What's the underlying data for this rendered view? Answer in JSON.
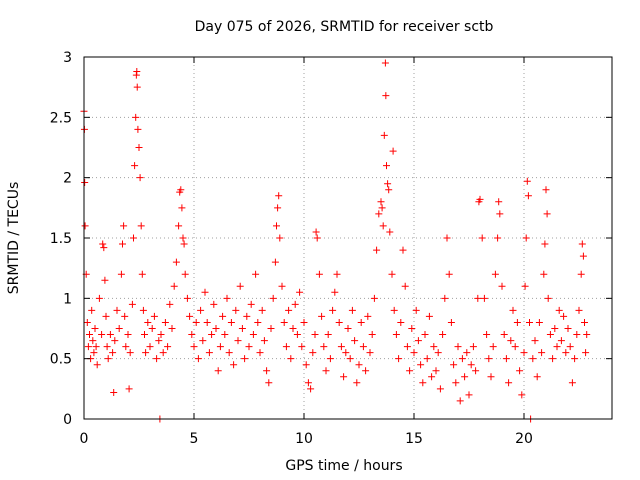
{
  "chart_data": {
    "type": "scatter",
    "title": "Day 075 of 2026, SRMTID for receiver sctb",
    "xlabel": "GPS time / hours",
    "ylabel": "SRMTID / TECUs",
    "xlim": [
      0,
      24
    ],
    "ylim": [
      0,
      3
    ],
    "grid": true,
    "x_ticks": [
      0,
      5,
      10,
      15,
      20
    ],
    "x_tick_labels": [
      "0",
      "5",
      "10",
      "15",
      "20"
    ],
    "y_ticks": [
      0,
      0.5,
      1,
      1.5,
      2,
      2.5,
      3
    ],
    "y_tick_labels": [
      "0",
      "0.5",
      "1",
      "1.5",
      "2",
      "2.5",
      "3"
    ],
    "marker": "+",
    "series": [
      {
        "name": "SRMTID",
        "color": "#ff0000",
        "points": [
          [
            0.0,
            2.55
          ],
          [
            0.02,
            2.4
          ],
          [
            0.03,
            1.96
          ],
          [
            0.05,
            1.6
          ],
          [
            0.1,
            1.2
          ],
          [
            0.15,
            0.8
          ],
          [
            0.2,
            0.6
          ],
          [
            0.25,
            0.7
          ],
          [
            0.3,
            0.5
          ],
          [
            0.35,
            0.9
          ],
          [
            0.4,
            0.65
          ],
          [
            0.45,
            0.55
          ],
          [
            0.5,
            0.75
          ],
          [
            0.55,
            0.6
          ],
          [
            0.6,
            0.45
          ],
          [
            0.7,
            1.0
          ],
          [
            0.8,
            0.7
          ],
          [
            0.85,
            1.45
          ],
          [
            0.9,
            1.42
          ],
          [
            0.95,
            1.15
          ],
          [
            1.0,
            0.85
          ],
          [
            1.05,
            0.6
          ],
          [
            1.1,
            0.5
          ],
          [
            1.2,
            0.7
          ],
          [
            1.3,
            0.55
          ],
          [
            1.35,
            0.22
          ],
          [
            1.4,
            0.65
          ],
          [
            1.5,
            0.9
          ],
          [
            1.6,
            0.75
          ],
          [
            1.7,
            1.2
          ],
          [
            1.75,
            1.45
          ],
          [
            1.8,
            1.6
          ],
          [
            1.85,
            0.85
          ],
          [
            1.9,
            0.6
          ],
          [
            2.0,
            0.7
          ],
          [
            2.05,
            0.25
          ],
          [
            2.1,
            0.55
          ],
          [
            2.2,
            0.95
          ],
          [
            2.25,
            1.5
          ],
          [
            2.3,
            2.1
          ],
          [
            2.35,
            2.5
          ],
          [
            2.38,
            2.85
          ],
          [
            2.4,
            2.88
          ],
          [
            2.42,
            2.75
          ],
          [
            2.45,
            2.4
          ],
          [
            2.5,
            2.25
          ],
          [
            2.55,
            2.0
          ],
          [
            2.6,
            1.6
          ],
          [
            2.65,
            1.2
          ],
          [
            2.7,
            0.9
          ],
          [
            2.75,
            0.7
          ],
          [
            2.8,
            0.55
          ],
          [
            2.9,
            0.8
          ],
          [
            3.0,
            0.6
          ],
          [
            3.1,
            0.75
          ],
          [
            3.2,
            0.85
          ],
          [
            3.3,
            0.5
          ],
          [
            3.4,
            0.65
          ],
          [
            3.45,
            0.0
          ],
          [
            3.5,
            0.7
          ],
          [
            3.6,
            0.55
          ],
          [
            3.7,
            0.8
          ],
          [
            3.8,
            0.6
          ],
          [
            3.9,
            0.95
          ],
          [
            4.0,
            0.75
          ],
          [
            4.1,
            1.1
          ],
          [
            4.2,
            1.3
          ],
          [
            4.3,
            1.6
          ],
          [
            4.35,
            1.88
          ],
          [
            4.4,
            1.9
          ],
          [
            4.45,
            1.75
          ],
          [
            4.5,
            1.5
          ],
          [
            4.55,
            1.45
          ],
          [
            4.6,
            1.2
          ],
          [
            4.7,
            1.0
          ],
          [
            4.8,
            0.85
          ],
          [
            4.9,
            0.7
          ],
          [
            5.0,
            0.6
          ],
          [
            5.1,
            0.8
          ],
          [
            5.2,
            0.5
          ],
          [
            5.3,
            0.9
          ],
          [
            5.4,
            0.65
          ],
          [
            5.5,
            1.05
          ],
          [
            5.6,
            0.8
          ],
          [
            5.7,
            0.55
          ],
          [
            5.8,
            0.7
          ],
          [
            5.9,
            0.95
          ],
          [
            6.0,
            0.75
          ],
          [
            6.1,
            0.4
          ],
          [
            6.2,
            0.6
          ],
          [
            6.3,
            0.85
          ],
          [
            6.4,
            0.7
          ],
          [
            6.5,
            1.0
          ],
          [
            6.6,
            0.55
          ],
          [
            6.7,
            0.8
          ],
          [
            6.8,
            0.45
          ],
          [
            6.9,
            0.9
          ],
          [
            7.0,
            0.65
          ],
          [
            7.1,
            1.1
          ],
          [
            7.2,
            0.75
          ],
          [
            7.3,
            0.5
          ],
          [
            7.4,
            0.85
          ],
          [
            7.5,
            0.6
          ],
          [
            7.6,
            0.95
          ],
          [
            7.7,
            0.7
          ],
          [
            7.8,
            1.2
          ],
          [
            7.9,
            0.8
          ],
          [
            8.0,
            0.55
          ],
          [
            8.1,
            0.9
          ],
          [
            8.2,
            0.65
          ],
          [
            8.3,
            0.4
          ],
          [
            8.4,
            0.3
          ],
          [
            8.5,
            0.75
          ],
          [
            8.6,
            1.0
          ],
          [
            8.7,
            1.3
          ],
          [
            8.75,
            1.6
          ],
          [
            8.8,
            1.75
          ],
          [
            8.85,
            1.85
          ],
          [
            8.9,
            1.5
          ],
          [
            9.0,
            1.1
          ],
          [
            9.1,
            0.8
          ],
          [
            9.2,
            0.6
          ],
          [
            9.3,
            0.9
          ],
          [
            9.4,
            0.5
          ],
          [
            9.5,
            0.75
          ],
          [
            9.6,
            0.95
          ],
          [
            9.7,
            0.7
          ],
          [
            9.8,
            1.05
          ],
          [
            9.9,
            0.6
          ],
          [
            10.0,
            0.8
          ],
          [
            10.1,
            0.45
          ],
          [
            10.2,
            0.3
          ],
          [
            10.3,
            0.25
          ],
          [
            10.4,
            0.55
          ],
          [
            10.5,
            0.7
          ],
          [
            10.55,
            1.55
          ],
          [
            10.6,
            1.5
          ],
          [
            10.7,
            1.2
          ],
          [
            10.8,
            0.85
          ],
          [
            10.9,
            0.6
          ],
          [
            11.0,
            0.4
          ],
          [
            11.1,
            0.7
          ],
          [
            11.2,
            0.5
          ],
          [
            11.3,
            0.9
          ],
          [
            11.4,
            1.05
          ],
          [
            11.5,
            1.2
          ],
          [
            11.6,
            0.8
          ],
          [
            11.7,
            0.6
          ],
          [
            11.8,
            0.35
          ],
          [
            11.9,
            0.55
          ],
          [
            12.0,
            0.75
          ],
          [
            12.1,
            0.5
          ],
          [
            12.2,
            0.9
          ],
          [
            12.3,
            0.65
          ],
          [
            12.4,
            0.3
          ],
          [
            12.5,
            0.45
          ],
          [
            12.6,
            0.8
          ],
          [
            12.7,
            0.6
          ],
          [
            12.8,
            0.4
          ],
          [
            12.9,
            0.85
          ],
          [
            13.0,
            0.55
          ],
          [
            13.1,
            0.7
          ],
          [
            13.2,
            1.0
          ],
          [
            13.3,
            1.4
          ],
          [
            13.4,
            1.7
          ],
          [
            13.5,
            1.8
          ],
          [
            13.55,
            1.75
          ],
          [
            13.6,
            1.6
          ],
          [
            13.65,
            2.35
          ],
          [
            13.7,
            2.95
          ],
          [
            13.72,
            2.68
          ],
          [
            13.75,
            2.1
          ],
          [
            13.8,
            1.95
          ],
          [
            13.85,
            1.9
          ],
          [
            13.9,
            1.55
          ],
          [
            14.0,
            1.2
          ],
          [
            14.05,
            2.22
          ],
          [
            14.1,
            0.9
          ],
          [
            14.2,
            0.7
          ],
          [
            14.3,
            0.5
          ],
          [
            14.4,
            0.8
          ],
          [
            14.5,
            1.4
          ],
          [
            14.6,
            1.1
          ],
          [
            14.7,
            0.6
          ],
          [
            14.8,
            0.4
          ],
          [
            14.9,
            0.75
          ],
          [
            15.0,
            0.55
          ],
          [
            15.1,
            0.9
          ],
          [
            15.2,
            0.65
          ],
          [
            15.3,
            0.45
          ],
          [
            15.4,
            0.3
          ],
          [
            15.5,
            0.7
          ],
          [
            15.6,
            0.5
          ],
          [
            15.7,
            0.85
          ],
          [
            15.8,
            0.35
          ],
          [
            15.9,
            0.6
          ],
          [
            16.0,
            0.4
          ],
          [
            16.1,
            0.55
          ],
          [
            16.2,
            0.25
          ],
          [
            16.3,
            0.7
          ],
          [
            16.4,
            1.0
          ],
          [
            16.5,
            1.5
          ],
          [
            16.6,
            1.2
          ],
          [
            16.7,
            0.8
          ],
          [
            16.8,
            0.45
          ],
          [
            16.9,
            0.3
          ],
          [
            17.0,
            0.6
          ],
          [
            17.1,
            0.15
          ],
          [
            17.2,
            0.5
          ],
          [
            17.3,
            0.35
          ],
          [
            17.4,
            0.55
          ],
          [
            17.5,
            0.2
          ],
          [
            17.6,
            0.45
          ],
          [
            17.7,
            0.6
          ],
          [
            17.8,
            0.4
          ],
          [
            17.9,
            1.0
          ],
          [
            17.95,
            1.8
          ],
          [
            18.0,
            1.82
          ],
          [
            18.1,
            1.5
          ],
          [
            18.2,
            1.0
          ],
          [
            18.3,
            0.7
          ],
          [
            18.4,
            0.5
          ],
          [
            18.5,
            0.35
          ],
          [
            18.6,
            0.6
          ],
          [
            18.7,
            1.2
          ],
          [
            18.8,
            1.5
          ],
          [
            18.85,
            1.8
          ],
          [
            18.9,
            1.7
          ],
          [
            19.0,
            1.1
          ],
          [
            19.1,
            0.7
          ],
          [
            19.2,
            0.5
          ],
          [
            19.3,
            0.3
          ],
          [
            19.4,
            0.65
          ],
          [
            19.5,
            0.9
          ],
          [
            19.6,
            0.6
          ],
          [
            19.7,
            0.8
          ],
          [
            19.8,
            0.4
          ],
          [
            19.9,
            0.2
          ],
          [
            20.0,
            0.55
          ],
          [
            20.05,
            1.1
          ],
          [
            20.1,
            1.5
          ],
          [
            20.15,
            1.97
          ],
          [
            20.2,
            1.85
          ],
          [
            20.25,
            0.8
          ],
          [
            20.3,
            0.0
          ],
          [
            20.4,
            0.5
          ],
          [
            20.5,
            0.65
          ],
          [
            20.6,
            0.35
          ],
          [
            20.7,
            0.8
          ],
          [
            20.8,
            0.55
          ],
          [
            20.9,
            1.2
          ],
          [
            20.95,
            1.45
          ],
          [
            21.0,
            1.9
          ],
          [
            21.05,
            1.7
          ],
          [
            21.1,
            1.0
          ],
          [
            21.2,
            0.7
          ],
          [
            21.3,
            0.5
          ],
          [
            21.4,
            0.75
          ],
          [
            21.5,
            0.6
          ],
          [
            21.6,
            0.9
          ],
          [
            21.7,
            0.65
          ],
          [
            21.8,
            0.85
          ],
          [
            21.9,
            0.55
          ],
          [
            22.0,
            0.75
          ],
          [
            22.1,
            0.6
          ],
          [
            22.2,
            0.3
          ],
          [
            22.3,
            0.5
          ],
          [
            22.4,
            0.7
          ],
          [
            22.5,
            0.9
          ],
          [
            22.6,
            1.2
          ],
          [
            22.65,
            1.45
          ],
          [
            22.7,
            1.35
          ],
          [
            22.75,
            0.8
          ],
          [
            22.8,
            0.55
          ],
          [
            22.85,
            0.7
          ]
        ]
      }
    ]
  }
}
